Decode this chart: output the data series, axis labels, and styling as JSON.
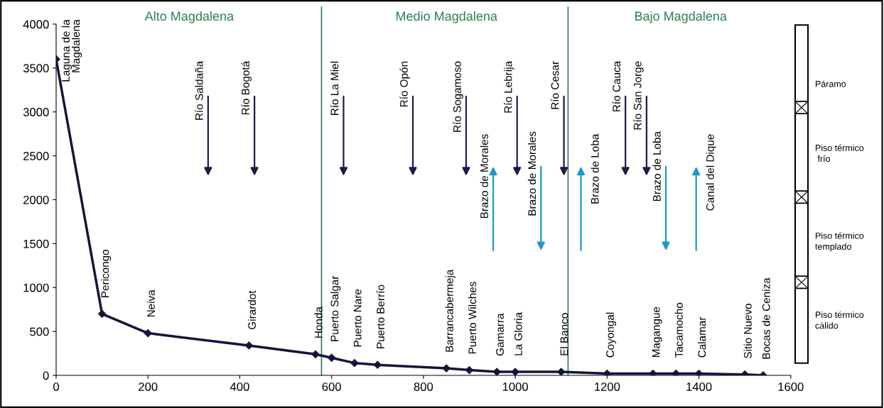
{
  "chart_data": {
    "type": "line",
    "x": [
      0,
      100,
      200,
      420,
      565,
      600,
      650,
      700,
      850,
      900,
      960,
      1000,
      1100,
      1200,
      1300,
      1350,
      1400,
      1500,
      1540
    ],
    "values": [
      3600,
      700,
      480,
      340,
      240,
      200,
      140,
      120,
      80,
      60,
      40,
      40,
      40,
      20,
      20,
      20,
      20,
      10,
      0
    ],
    "color": "#14143c",
    "marker": "diamond",
    "line_style": "solid",
    "xlim": [
      0,
      1600
    ],
    "ylim": [
      0,
      4200
    ],
    "xticks": [
      0,
      200,
      400,
      600,
      800,
      1000,
      1200,
      1400,
      1600
    ],
    "yticks": [
      0,
      500,
      1000,
      1500,
      2000,
      2500,
      3000,
      3500,
      4000
    ],
    "grid": false,
    "ref_lines": [
      {
        "axis": "x",
        "value": 578,
        "label": null,
        "color": "#2e7d4f"
      },
      {
        "axis": "x",
        "value": 1115,
        "label": null,
        "color": "#2e7d4f"
      }
    ],
    "annotations": [
      "Alto Magdalena",
      "Medio Magdalena",
      "Bajo Magdalena",
      {
        "text": "Laguna de la\nMagdalena",
        "x": 0,
        "y": 3600
      },
      {
        "text": "Pericongo",
        "x": 100,
        "y": 700
      },
      {
        "text": "Neiva",
        "x": 200,
        "y": 480
      },
      {
        "text": "Girardot",
        "x": 420,
        "y": 340
      },
      {
        "text": "Honda",
        "x": 565,
        "y": 240
      },
      {
        "text": "Puerto Salgar",
        "x": 600,
        "y": 200
      },
      {
        "text": "Puerto Nare",
        "x": 650,
        "y": 140
      },
      {
        "text": "Puerto Berrío",
        "x": 700,
        "y": 120
      },
      {
        "text": "Barrancabermeja",
        "x": 850,
        "y": 80
      },
      {
        "text": "Puerto Wilches",
        "x": 900,
        "y": 60
      },
      {
        "text": "Gamarra",
        "x": 960,
        "y": 40
      },
      {
        "text": "La Gloria",
        "x": 1000,
        "y": 40
      },
      {
        "text": "El Banco",
        "x": 1100,
        "y": 40
      },
      {
        "text": "Coyongal",
        "x": 1200,
        "y": 20
      },
      {
        "text": "Magangue",
        "x": 1300,
        "y": 20
      },
      {
        "text": "Tacamocho",
        "x": 1350,
        "y": 20
      },
      {
        "text": "Calamar",
        "x": 1400,
        "y": 20
      },
      {
        "text": "Sitio Nuevo",
        "x": 1500,
        "y": 10
      },
      {
        "text": "Bocas de Ceniza",
        "x": 1540,
        "y": 0
      },
      "Río Saldaña",
      "Río Bogotá",
      "Río La Miel",
      "Río Opón",
      "Río Sogamoso",
      "Río Lebrija",
      "Río Cesar",
      "Río Cauca",
      "Río San Jorge",
      "Brazo de Morales",
      "Brazo de Morales",
      "Brazo de Loba",
      "Brazo de Loba",
      "Canal del Dique",
      "Páramo",
      "Piso térmico\n frío",
      "Piso térmico\ntemplado",
      "Piso térmico\ncálido"
    ]
  }
}
